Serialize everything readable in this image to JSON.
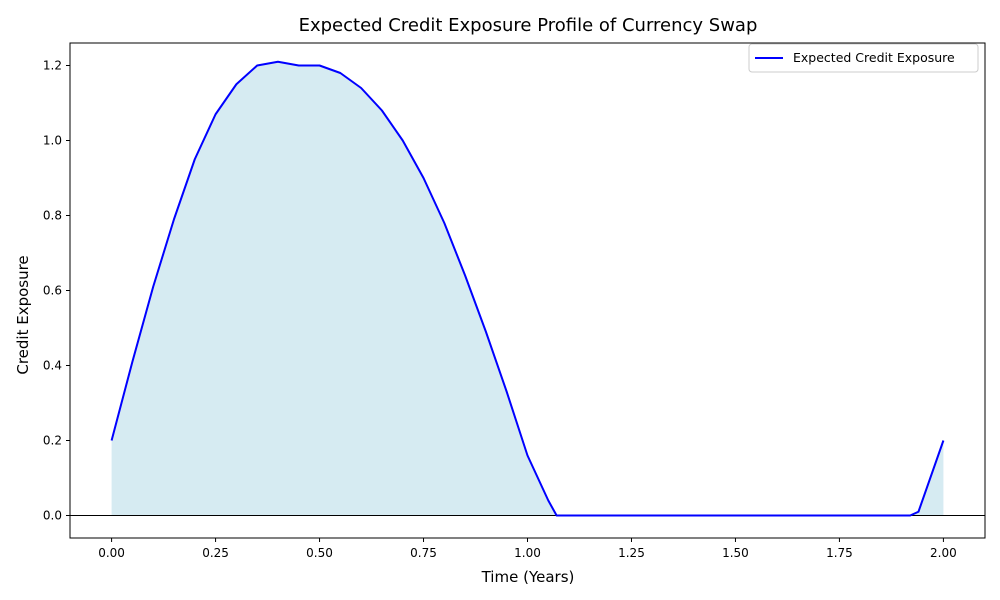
{
  "chart_data": {
    "type": "area",
    "title": "Expected Credit Exposure Profile of Currency Swap",
    "xlabel": "Time (Years)",
    "ylabel": "Credit Exposure",
    "xlim": [
      -0.1,
      2.1
    ],
    "ylim": [
      -0.06,
      1.26
    ],
    "x_ticks": [
      0.0,
      0.25,
      0.5,
      0.75,
      1.0,
      1.25,
      1.5,
      1.75,
      2.0
    ],
    "x_tick_labels": [
      "0.00",
      "0.25",
      "0.50",
      "0.75",
      "1.00",
      "1.25",
      "1.50",
      "1.75",
      "2.00"
    ],
    "y_ticks": [
      0.0,
      0.2,
      0.4,
      0.6,
      0.8,
      1.0,
      1.2
    ],
    "y_tick_labels": [
      "0.0",
      "0.2",
      "0.4",
      "0.6",
      "0.8",
      "1.0",
      "1.2"
    ],
    "grid": false,
    "zero_line": true,
    "legend_position": "top-right",
    "series": [
      {
        "name": "Expected Credit Exposure",
        "line_color": "#0000ff",
        "fill_color": "#add8e6",
        "x": [
          0.0,
          0.05,
          0.1,
          0.15,
          0.2,
          0.25,
          0.3,
          0.35,
          0.4,
          0.45,
          0.5,
          0.55,
          0.6,
          0.65,
          0.7,
          0.75,
          0.8,
          0.85,
          0.9,
          0.95,
          1.0,
          1.05,
          1.07,
          1.25,
          1.5,
          1.75,
          1.92,
          1.94,
          2.0
        ],
        "y": [
          0.2,
          0.41,
          0.61,
          0.79,
          0.95,
          1.07,
          1.15,
          1.2,
          1.21,
          1.2,
          1.2,
          1.18,
          1.14,
          1.08,
          1.0,
          0.9,
          0.78,
          0.64,
          0.49,
          0.33,
          0.16,
          0.04,
          0.0,
          0.0,
          0.0,
          0.0,
          0.0,
          0.01,
          0.2
        ]
      }
    ]
  }
}
